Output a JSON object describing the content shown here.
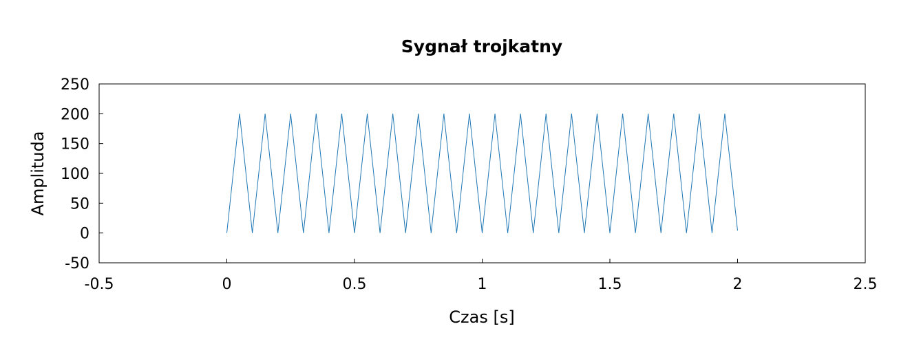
{
  "chart_data": {
    "type": "line",
    "title": "Sygnał trojkatny",
    "xlabel": "Czas [s]",
    "ylabel": "Amplituda",
    "xlim": [
      -0.5,
      2.5
    ],
    "ylim": [
      -50,
      250
    ],
    "xticks": [
      "-0.5",
      "0",
      "0.5",
      "1",
      "1.5",
      "2",
      "2.5"
    ],
    "yticks": [
      "250",
      "200",
      "150",
      "100",
      "50",
      "0",
      "-50"
    ],
    "grid": false,
    "legend": "none",
    "series": [
      {
        "color": "#1f77b4",
        "x": [
          0,
          0.05,
          0.1,
          0.15,
          0.2,
          0.25,
          0.3,
          0.35,
          0.4,
          0.45,
          0.5,
          0.55,
          0.6,
          0.65,
          0.7,
          0.75,
          0.8,
          0.85,
          0.9,
          0.95,
          1.0,
          1.05,
          1.1,
          1.15,
          1.2,
          1.25,
          1.3,
          1.35,
          1.4,
          1.45,
          1.5,
          1.55,
          1.6,
          1.65,
          1.7,
          1.75,
          1.8,
          1.85,
          1.9,
          1.95,
          2.0
        ],
        "y": [
          0,
          200,
          0,
          200,
          0,
          200,
          0,
          200,
          0,
          200,
          0,
          200,
          0,
          200,
          0,
          200,
          0,
          200,
          0,
          200,
          0,
          200,
          0,
          200,
          0,
          200,
          0,
          200,
          0,
          200,
          0,
          200,
          0,
          200,
          0,
          200,
          0,
          200,
          0,
          200,
          4
        ]
      }
    ]
  }
}
